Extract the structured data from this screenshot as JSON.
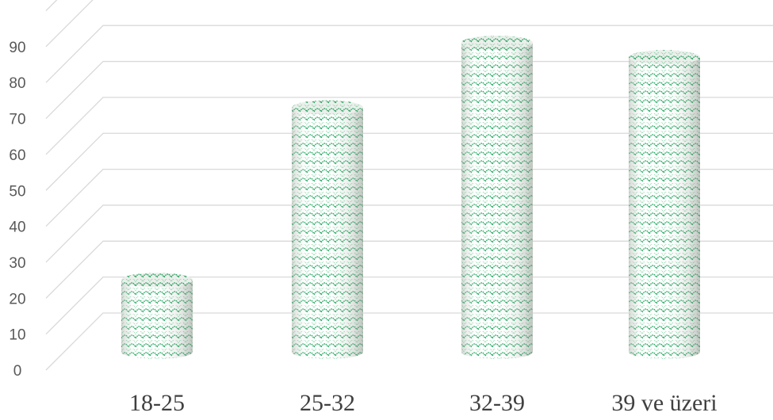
{
  "chart_data": {
    "type": "bar",
    "style": "3d-cylinder",
    "categories": [
      "18-25",
      "25-32",
      "32-39",
      "39 ve üzeri"
    ],
    "values": [
      20,
      68,
      86,
      82
    ],
    "title": "",
    "xlabel": "",
    "ylabel": "",
    "yticks": [
      "0",
      "10",
      "20",
      "30",
      "40",
      "50",
      "60",
      "70",
      "80",
      "90"
    ],
    "ylim": [
      0,
      100
    ],
    "grid": true,
    "legend": "none",
    "colors": {
      "pattern": "#1aa35a",
      "pattern_light": "#7fd6a4",
      "fill": "#ffffff",
      "shade": "#d9ded9",
      "grid": "#d9d9d9"
    }
  }
}
